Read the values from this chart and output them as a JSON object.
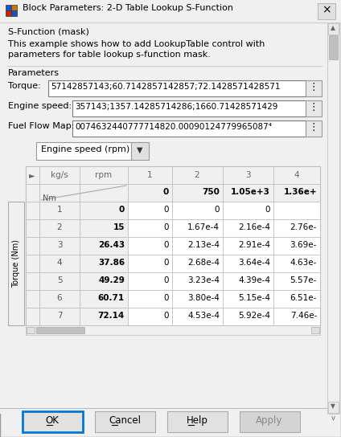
{
  "title": "Block Parameters: 2-D Table Lookup S-Function",
  "subtitle": "S-Function (mask)",
  "description_line1": "This example shows how to add LookupTable control with",
  "description_line2": "parameters for table lookup s-function mask.",
  "params_label": "Parameters",
  "param1_label": "Torque:",
  "param1_value": "57142857143;60.7142857142857;72.1428571428571",
  "param2_label": "Engine speed:",
  "param2_value": "357143;1357.14285714286;1660.71428571429",
  "param3_label": "Fuel Flow Map:",
  "param3_value": "0074632440777714820.00090124779965087⁴",
  "dropdown_label": "Engine speed (rpm)",
  "col_headers_left": [
    "kg/s",
    "rpm"
  ],
  "col_headers_right": [
    "1",
    "2",
    "3",
    "4"
  ],
  "nm_label": "Nm",
  "col_values": [
    "0",
    "750",
    "1.05e+3",
    "1.36e+"
  ],
  "rows": [
    {
      "idx": "1",
      "torque": "0",
      "c1": "0",
      "c2": "0",
      "c3": "0",
      "c4": ""
    },
    {
      "idx": "2",
      "torque": "15",
      "c1": "0",
      "c2": "1.67e-4",
      "c3": "2.16e-4",
      "c4": "2.76e-"
    },
    {
      "idx": "3",
      "torque": "26.43",
      "c1": "0",
      "c2": "2.13e-4",
      "c3": "2.91e-4",
      "c4": "3.69e-"
    },
    {
      "idx": "4",
      "torque": "37.86",
      "c1": "0",
      "c2": "2.68e-4",
      "c3": "3.64e-4",
      "c4": "4.63e-"
    },
    {
      "idx": "5",
      "torque": "49.29",
      "c1": "0",
      "c2": "3.23e-4",
      "c3": "4.39e-4",
      "c4": "5.57e-"
    },
    {
      "idx": "6",
      "torque": "60.71",
      "c1": "0",
      "c2": "3.80e-4",
      "c3": "5.15e-4",
      "c4": "6.51e-"
    },
    {
      "idx": "7",
      "torque": "72.14",
      "c1": "0",
      "c2": "4.53e-4",
      "c3": "5.92e-4",
      "c4": "7.46e-"
    }
  ],
  "buttons": [
    "OK",
    "Cancel",
    "Help",
    "Apply"
  ],
  "bg": "#f0f0f0",
  "white": "#ffffff",
  "cell_bg": "#f5f5f5",
  "input_border": "#7a7a7a",
  "table_border": "#a0a0a0",
  "button_bg": "#e1e1e1",
  "ok_border": "#0078d7",
  "scrollbar_bg": "#f0f0f0",
  "scrollbar_thumb": "#c0c0c0",
  "black": "#000000",
  "gray": "#666666",
  "light_gray": "#cccccc"
}
